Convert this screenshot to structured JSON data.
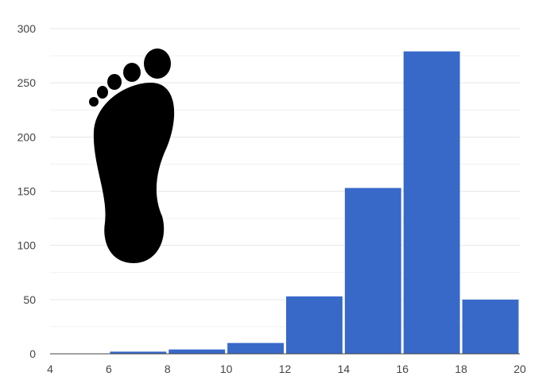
{
  "chart_data": {
    "type": "bar",
    "title": "",
    "xlabel": "",
    "ylabel": "",
    "bins": [
      {
        "x0": 6,
        "x1": 8,
        "value": 2
      },
      {
        "x0": 8,
        "x1": 10,
        "value": 4
      },
      {
        "x0": 10,
        "x1": 12,
        "value": 10
      },
      {
        "x0": 12,
        "x1": 14,
        "value": 53
      },
      {
        "x0": 14,
        "x1": 16,
        "value": 153
      },
      {
        "x0": 16,
        "x1": 18,
        "value": 279
      },
      {
        "x0": 18,
        "x1": 20,
        "value": 50
      }
    ],
    "xlim": [
      4,
      20
    ],
    "ylim": [
      0,
      300
    ],
    "x_ticks": [
      "4",
      "6",
      "8",
      "10",
      "12",
      "14",
      "16",
      "18",
      "20"
    ],
    "y_ticks": [
      "0",
      "50",
      "100",
      "150",
      "200",
      "250",
      "300"
    ],
    "grid": true,
    "minor_gridlines": true,
    "bar_color": "#3869c9",
    "gridline_color": "#e6e6e6",
    "axis_color": "#444444",
    "decoration": "footprint-icon"
  }
}
